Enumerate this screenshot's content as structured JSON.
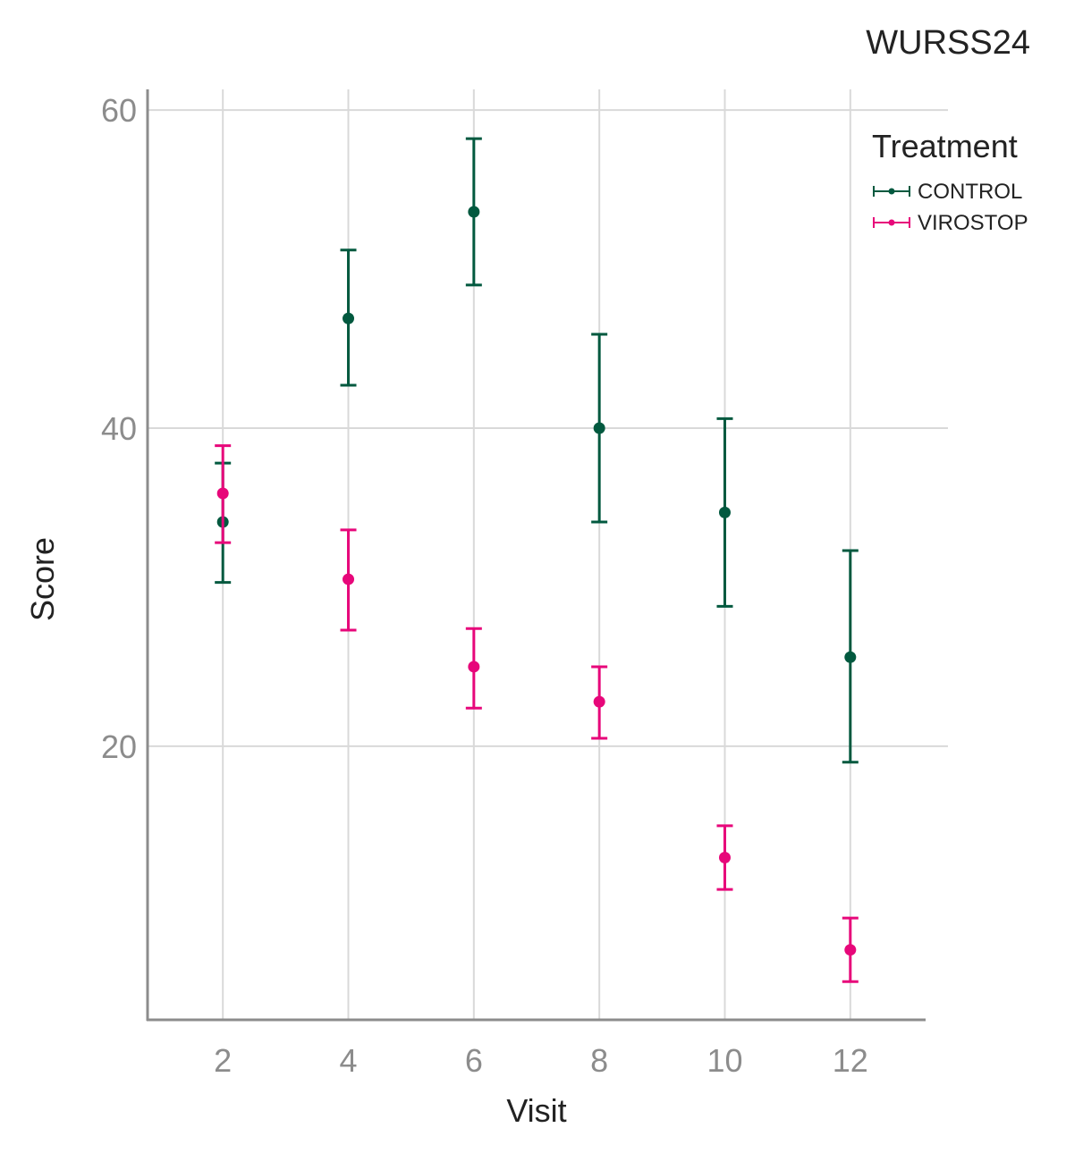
{
  "chart_data": {
    "type": "scatter",
    "title": "WURSS24",
    "xlabel": "Visit",
    "ylabel": "Score",
    "x": [
      2,
      4,
      6,
      8,
      10,
      12
    ],
    "xticks": [
      "2",
      "4",
      "6",
      "8",
      "10",
      "12"
    ],
    "xlim": [
      0.8,
      13.2
    ],
    "yticks": [
      "20",
      "40",
      "60"
    ],
    "ylim": [
      2.8,
      61.3
    ],
    "grid": true,
    "legend": {
      "title": "Treatment",
      "position": "top-right"
    },
    "series": [
      {
        "name": "CONTROL",
        "color": "#02593f",
        "y": [
          34.1,
          46.9,
          53.6,
          40.0,
          34.7,
          25.6
        ],
        "err_low": [
          30.3,
          42.7,
          49.0,
          34.1,
          28.8,
          19.0
        ],
        "err_high": [
          37.8,
          51.2,
          58.2,
          45.9,
          40.6,
          32.3
        ]
      },
      {
        "name": "VIROSTOP",
        "color": "#e7077a",
        "y": [
          35.9,
          30.5,
          25.0,
          22.8,
          13.0,
          7.2
        ],
        "err_low": [
          32.8,
          27.3,
          22.4,
          20.5,
          11.0,
          5.2
        ],
        "err_high": [
          38.9,
          33.6,
          27.4,
          25.0,
          15.0,
          9.2
        ]
      }
    ]
  }
}
